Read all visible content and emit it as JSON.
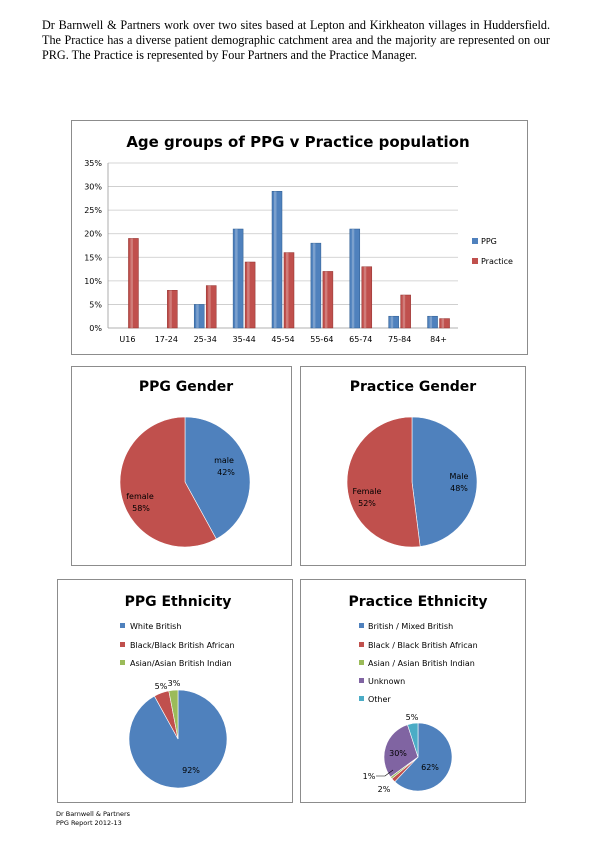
{
  "intro_text": "Dr Barnwell & Partners work over two sites based at Lepton and Kirkheaton villages in Huddersfield. The Practice has a diverse patient demographic catchment area and the majority are represented on our PRG. The Practice is represented by Four Partners and the Practice Manager.",
  "colors": {
    "blue": "#4f81bd",
    "red": "#c0504d",
    "green": "#9bbb59",
    "purple": "#8064a2",
    "cyan": "#4bacc6"
  },
  "chart_data": [
    {
      "id": "age",
      "type": "bar",
      "title": "Age groups of PPG v Practice population",
      "categories": [
        "U16",
        "17-24",
        "25-34",
        "35-44",
        "45-54",
        "55-64",
        "65-74",
        "75-84",
        "84+"
      ],
      "series": [
        {
          "name": "PPG",
          "values": [
            0,
            0,
            5,
            21,
            29,
            18,
            21,
            2.5,
            2.5
          ]
        },
        {
          "name": "Practice",
          "values": [
            19,
            8,
            9,
            14,
            16,
            12,
            13,
            7,
            2
          ]
        }
      ],
      "yticks": [
        "0%",
        "5%",
        "10%",
        "15%",
        "20%",
        "25%",
        "30%",
        "35%"
      ],
      "ylim": [
        0,
        35
      ],
      "grid": true,
      "legend": "right"
    },
    {
      "id": "ppg_gender",
      "type": "pie",
      "title": "PPG Gender",
      "slices": [
        {
          "label": "male",
          "value": 42,
          "pct": "42%"
        },
        {
          "label": "female",
          "value": 58,
          "pct": "58%"
        }
      ]
    },
    {
      "id": "practice_gender",
      "type": "pie",
      "title": "Practice Gender",
      "slices": [
        {
          "label": "Male",
          "value": 48,
          "pct": "48%"
        },
        {
          "label": "Female",
          "value": 52,
          "pct": "52%"
        }
      ]
    },
    {
      "id": "ppg_ethnicity",
      "type": "pie",
      "title": "PPG Ethnicity",
      "legend_entries": [
        "White British",
        "Black/Black British African",
        "Asian/Asian British Indian"
      ],
      "slices": [
        {
          "value": 92,
          "pct": "92%"
        },
        {
          "value": 5,
          "pct": "5%"
        },
        {
          "value": 3,
          "pct": "3%"
        }
      ],
      "legend": "top"
    },
    {
      "id": "practice_ethnicity",
      "type": "pie",
      "title": "Practice Ethnicity",
      "legend_entries": [
        "British / Mixed British",
        "Black / Black British African",
        "Asian / Asian British Indian",
        "Unknown",
        "Other"
      ],
      "slices": [
        {
          "value": 62,
          "pct": "62%"
        },
        {
          "value": 2,
          "pct": "2%"
        },
        {
          "value": 1,
          "pct": "1%"
        },
        {
          "value": 30,
          "pct": "30%"
        },
        {
          "value": 5,
          "pct": "5%"
        }
      ],
      "legend": "top"
    }
  ],
  "footer": {
    "line1": "Dr Barnwell & Partners",
    "line2": "PPG Report 2012-13"
  }
}
